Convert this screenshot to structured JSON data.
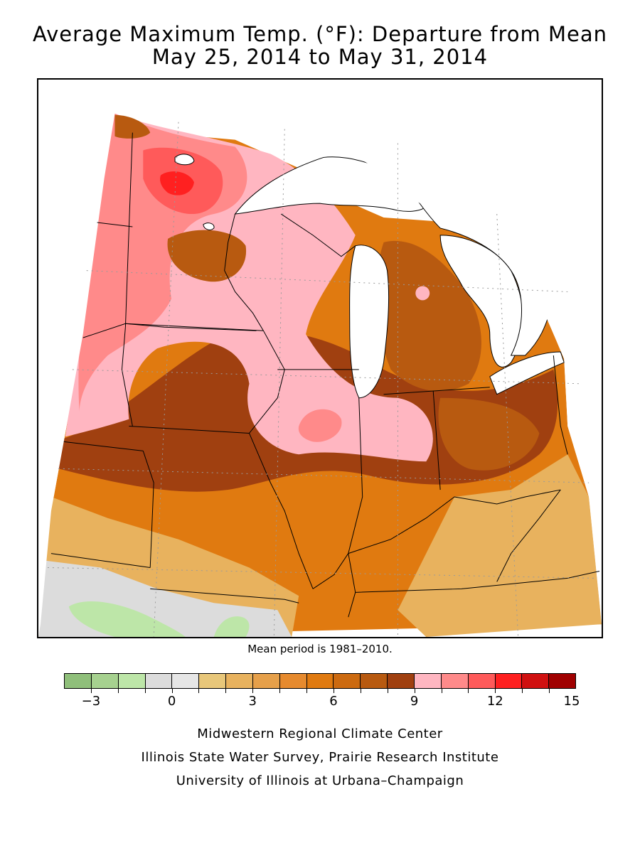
{
  "title_line1": "Average Maximum Temp. (°F): Departure from Mean",
  "title_line2": "May 25, 2014 to May 31, 2014",
  "mean_period_note": "Mean period is 1981–2010.",
  "legend": {
    "colors": [
      "#8fbf7a",
      "#a6d18f",
      "#bde6a8",
      "#dcdcdc",
      "#e6e6e6",
      "#e8c77a",
      "#e8b25e",
      "#e6a04a",
      "#e68a2e",
      "#e07a10",
      "#cc6a10",
      "#b85a10",
      "#a04010",
      "#ffb6c1",
      "#ff8a8a",
      "#ff5a5a",
      "#ff2020",
      "#d01010",
      "#a00000"
    ],
    "tick_values": [
      -3,
      0,
      3,
      6,
      9,
      12,
      15
    ],
    "tick_labels": [
      "−3",
      "0",
      "3",
      "6",
      "9",
      "12",
      "15"
    ]
  },
  "credits": {
    "line1": "Midwestern Regional Climate Center",
    "line2": "Illinois State Water Survey, Prairie Research Institute",
    "line3": "University of Illinois at Urbana–Champaign"
  }
}
